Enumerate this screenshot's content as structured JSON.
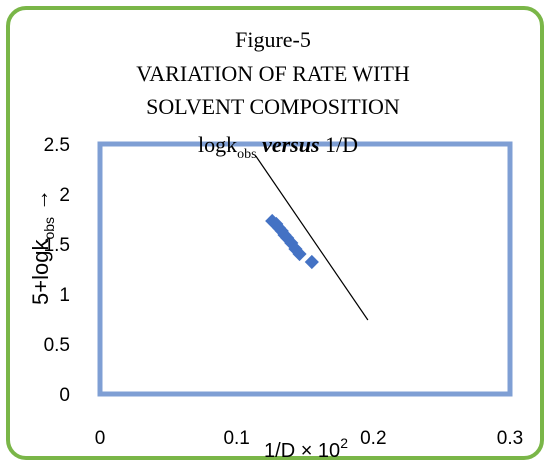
{
  "chart_data": {
    "type": "scatter",
    "title_lines": [
      "Figure-5",
      "VARIATION OF RATE WITH",
      "SOLVENT COMPOSITION"
    ],
    "subtitle": {
      "main": "logk",
      "sub": "obs",
      "versus": "versus",
      "rest": "1/D"
    },
    "xlabel": {
      "main": "1/D × 10",
      "sup": "2"
    },
    "ylabel": {
      "main": "5+logk",
      "sub": "obs",
      "arrow": "→"
    },
    "xlim": [
      0,
      0.3
    ],
    "ylim": [
      0,
      2.5
    ],
    "x_ticks": [
      0,
      0.1,
      0.2,
      0.3
    ],
    "x_tick_labels": [
      "0",
      "0.1",
      "0.2",
      "0.3"
    ],
    "y_ticks": [
      0,
      0.5,
      1,
      1.5,
      2,
      2.5
    ],
    "y_tick_labels": [
      "0",
      "0.5",
      "1",
      "1.5",
      "2",
      "2.5"
    ],
    "series": [
      {
        "x": [
          0.126,
          0.129,
          0.131,
          0.133,
          0.135,
          0.137,
          0.14,
          0.143,
          0.146,
          0.155
        ],
        "y": [
          1.73,
          1.7,
          1.66,
          1.63,
          1.59,
          1.56,
          1.51,
          1.45,
          1.4,
          1.32
        ]
      }
    ],
    "trendline": {
      "x": [
        0.114,
        0.196
      ],
      "y": [
        2.38,
        0.74
      ]
    },
    "colors": {
      "marker": "#4472c4",
      "plot_border": "#7f9fd4",
      "trendline": "#000000",
      "frame": "#7ab648"
    }
  }
}
